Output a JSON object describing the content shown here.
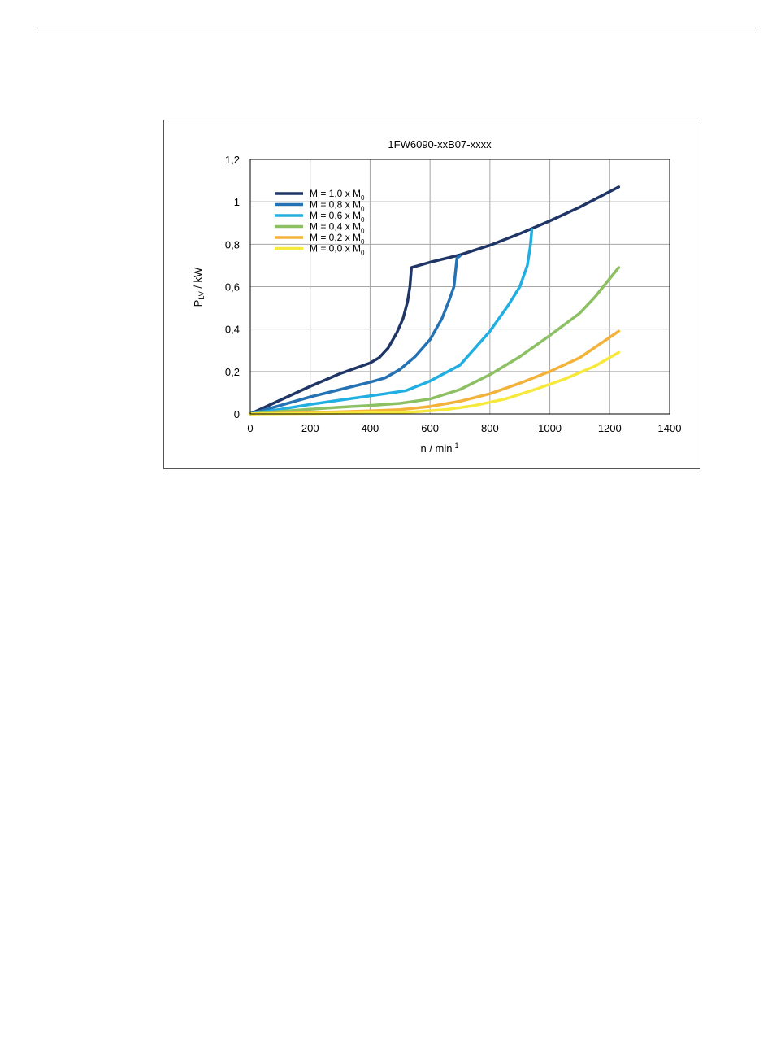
{
  "chart_data": {
    "type": "line",
    "title": "1FW6090-xxB07-xxxx",
    "xlabel": {
      "main": "n / min",
      "sup": "-1"
    },
    "ylabel": {
      "main": "P",
      "sub": "LV",
      "rest": " / kW"
    },
    "xlim": [
      0,
      1400
    ],
    "ylim": [
      0,
      1.2
    ],
    "x_ticks": [
      0,
      200,
      400,
      600,
      800,
      1000,
      1200,
      1400
    ],
    "x_tick_labels": [
      "0",
      "200",
      "400",
      "600",
      "800",
      "1000",
      "1200",
      "1400"
    ],
    "y_ticks": [
      0,
      0.2,
      0.4,
      0.6,
      0.8,
      1.0,
      1.2
    ],
    "y_tick_labels": [
      "0",
      "0,2",
      "0,4",
      "0,6",
      "0,8",
      "1",
      "1,2"
    ],
    "grid": true,
    "legend_position": "top-left",
    "series": [
      {
        "name": "M = 1,0 x M",
        "name_sub": "0",
        "color": "#1f3566",
        "points": [
          [
            0,
            0
          ],
          [
            100,
            0.065
          ],
          [
            200,
            0.13
          ],
          [
            300,
            0.19
          ],
          [
            400,
            0.24
          ],
          [
            430,
            0.265
          ],
          [
            460,
            0.31
          ],
          [
            490,
            0.385
          ],
          [
            510,
            0.45
          ],
          [
            525,
            0.53
          ],
          [
            533,
            0.6
          ],
          [
            538,
            0.69
          ],
          [
            600,
            0.715
          ],
          [
            700,
            0.75
          ],
          [
            800,
            0.795
          ],
          [
            900,
            0.85
          ],
          [
            1000,
            0.91
          ],
          [
            1100,
            0.975
          ],
          [
            1230,
            1.07
          ]
        ]
      },
      {
        "name": "M = 0,8 x M",
        "name_sub": "0",
        "color": "#2472b3",
        "points": [
          [
            0,
            0
          ],
          [
            100,
            0.04
          ],
          [
            200,
            0.08
          ],
          [
            300,
            0.115
          ],
          [
            400,
            0.15
          ],
          [
            450,
            0.17
          ],
          [
            500,
            0.21
          ],
          [
            550,
            0.27
          ],
          [
            600,
            0.35
          ],
          [
            640,
            0.45
          ],
          [
            665,
            0.54
          ],
          [
            680,
            0.6
          ],
          [
            690,
            0.735
          ],
          [
            700,
            0.745
          ]
        ]
      },
      {
        "name": "M = 0,6 x M",
        "name_sub": "0",
        "color": "#21aee0",
        "points": [
          [
            0,
            0
          ],
          [
            100,
            0.022
          ],
          [
            200,
            0.045
          ],
          [
            300,
            0.065
          ],
          [
            400,
            0.085
          ],
          [
            450,
            0.095
          ],
          [
            520,
            0.11
          ],
          [
            600,
            0.155
          ],
          [
            700,
            0.23
          ],
          [
            800,
            0.39
          ],
          [
            860,
            0.51
          ],
          [
            900,
            0.6
          ],
          [
            925,
            0.7
          ],
          [
            935,
            0.79
          ],
          [
            940,
            0.87
          ]
        ]
      },
      {
        "name": "M = 0,4 x M",
        "name_sub": "0",
        "color": "#8cc063",
        "points": [
          [
            0,
            0
          ],
          [
            100,
            0.012
          ],
          [
            200,
            0.022
          ],
          [
            300,
            0.032
          ],
          [
            400,
            0.04
          ],
          [
            500,
            0.05
          ],
          [
            600,
            0.07
          ],
          [
            700,
            0.115
          ],
          [
            800,
            0.185
          ],
          [
            900,
            0.27
          ],
          [
            1000,
            0.37
          ],
          [
            1100,
            0.475
          ],
          [
            1150,
            0.55
          ],
          [
            1230,
            0.69
          ]
        ]
      },
      {
        "name": "M = 0,2 x M",
        "name_sub": "0",
        "color": "#f3b23a",
        "points": [
          [
            0,
            0
          ],
          [
            100,
            0.003
          ],
          [
            200,
            0.007
          ],
          [
            300,
            0.01
          ],
          [
            400,
            0.014
          ],
          [
            500,
            0.02
          ],
          [
            600,
            0.035
          ],
          [
            700,
            0.06
          ],
          [
            800,
            0.095
          ],
          [
            900,
            0.145
          ],
          [
            1000,
            0.2
          ],
          [
            1100,
            0.265
          ],
          [
            1230,
            0.39
          ]
        ]
      },
      {
        "name": "M = 0,0 x M",
        "name_sub": "0",
        "color": "#f7e93b",
        "points": [
          [
            0,
            0
          ],
          [
            200,
            0.002
          ],
          [
            400,
            0.005
          ],
          [
            550,
            0.01
          ],
          [
            650,
            0.02
          ],
          [
            750,
            0.04
          ],
          [
            850,
            0.07
          ],
          [
            950,
            0.115
          ],
          [
            1050,
            0.165
          ],
          [
            1150,
            0.225
          ],
          [
            1230,
            0.29
          ]
        ]
      }
    ]
  }
}
